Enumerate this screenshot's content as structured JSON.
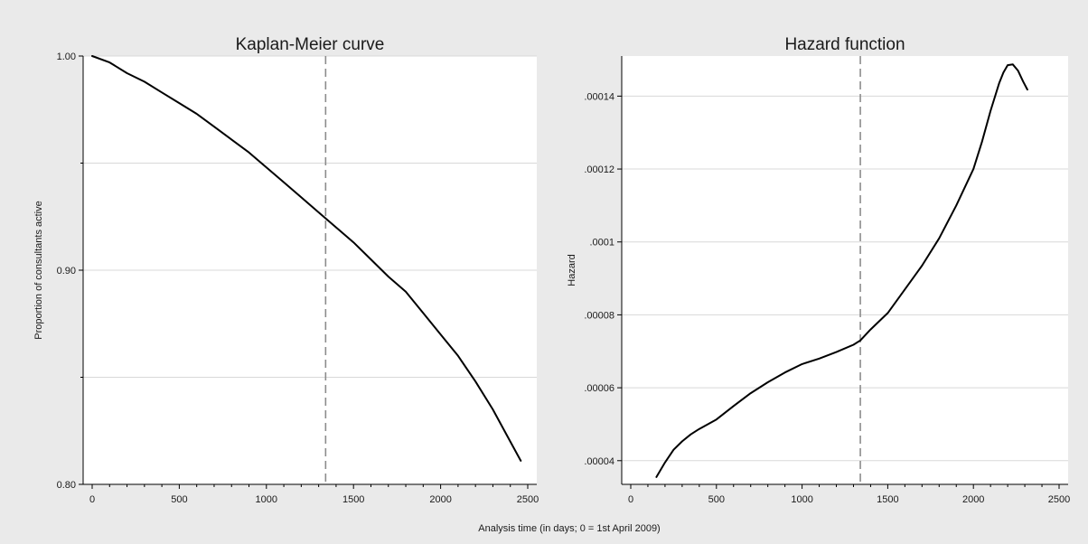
{
  "figure": {
    "xlabel": "Analysis time (in days; 0 = 1st April 2009)",
    "background_color": "#eaeaea",
    "plot_color": "#ffffff",
    "line_color": "#000000",
    "grid_color": "#d8d8d8",
    "reference_line_color": "#8c8c8c"
  },
  "chart_data": [
    {
      "type": "line",
      "title": "Kaplan-Meier curve",
      "xlabel": "",
      "ylabel": "Proportion of consultants active",
      "xlim": [
        0,
        2500
      ],
      "ylim": [
        0.8,
        1.0
      ],
      "xticks": [
        0,
        500,
        1000,
        1500,
        2000,
        2500
      ],
      "xtick_labels": [
        "0",
        "500",
        "1000",
        "1500",
        "2000",
        "2500"
      ],
      "yticks": [
        0.8,
        0.9,
        1.0
      ],
      "ytick_labels": [
        "0.80",
        "0.90",
        "1.00"
      ],
      "ygrid": [
        0.8,
        0.85,
        0.9,
        0.95,
        1.0
      ],
      "grid": true,
      "reference_line": {
        "x": 1340,
        "style": "dashed"
      },
      "series": [
        {
          "x": [
            0,
            100,
            200,
            300,
            400,
            500,
            600,
            700,
            800,
            900,
            1000,
            1100,
            1200,
            1300,
            1400,
            1500,
            1600,
            1700,
            1800,
            1900,
            2000,
            2100,
            2200,
            2300,
            2400,
            2460
          ],
          "values": [
            1.0,
            0.997,
            0.992,
            0.988,
            0.983,
            0.978,
            0.973,
            0.967,
            0.961,
            0.955,
            0.948,
            0.941,
            0.934,
            0.927,
            0.92,
            0.913,
            0.905,
            0.897,
            0.89,
            0.88,
            0.87,
            0.86,
            0.848,
            0.835,
            0.82,
            0.811
          ]
        }
      ]
    },
    {
      "type": "line",
      "title": "Hazard function",
      "xlabel": "",
      "ylabel": "Hazard",
      "xlim": [
        0,
        2500
      ],
      "ylim": [
        3.35e-05,
        0.000151
      ],
      "xticks": [
        0,
        500,
        1000,
        1500,
        2000,
        2500
      ],
      "xtick_labels": [
        "0",
        "500",
        "1000",
        "1500",
        "2000",
        "2500"
      ],
      "yticks": [
        4e-05,
        6e-05,
        8e-05,
        0.0001,
        0.00012,
        0.00014
      ],
      "ytick_labels": [
        ".00004",
        ".00006",
        ".00008",
        ".0001",
        ".00012",
        ".00014"
      ],
      "ygrid": [
        4e-05,
        6e-05,
        8e-05,
        0.0001,
        0.00012,
        0.00014
      ],
      "grid": true,
      "reference_line": {
        "x": 1340,
        "style": "dashed"
      },
      "series": [
        {
          "x": [
            150,
            200,
            250,
            300,
            350,
            400,
            500,
            600,
            700,
            800,
            900,
            1000,
            1100,
            1200,
            1300,
            1340,
            1400,
            1500,
            1600,
            1700,
            1800,
            1900,
            2000,
            2050,
            2100,
            2150,
            2175,
            2200,
            2230,
            2260,
            2290,
            2315
          ],
          "values": [
            3.55e-05,
            3.95e-05,
            4.3e-05,
            4.53e-05,
            4.72e-05,
            4.87e-05,
            5.13e-05,
            5.5e-05,
            5.85e-05,
            6.15e-05,
            6.42e-05,
            6.65e-05,
            6.8e-05,
            6.98e-05,
            7.18e-05,
            7.3e-05,
            7.6e-05,
            8.05e-05,
            8.7e-05,
            9.35e-05,
            0.000101,
            0.00011,
            0.00012,
            0.0001275,
            0.000136,
            0.0001435,
            0.0001465,
            0.0001485,
            0.0001487,
            0.000147,
            0.000144,
            0.0001418
          ]
        }
      ]
    }
  ]
}
